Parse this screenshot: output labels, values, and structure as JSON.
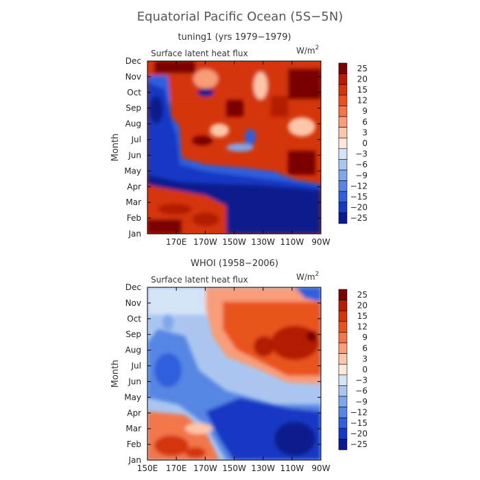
{
  "title": "Equatorial Pacific Ocean (5S−5N)",
  "chart_data": [
    {
      "type": "heatmap",
      "subtitle": "tuning1 (yrs 1979−1979)",
      "field_label": "Surface latent heat flux",
      "units_base": "W/m",
      "units_sup": "2",
      "ylabel": "Month",
      "y_ticks": [
        "Jan",
        "Feb",
        "Mar",
        "Apr",
        "May",
        "Jun",
        "Jul",
        "Aug",
        "Sep",
        "Oct",
        "Nov",
        "Dec"
      ],
      "x_ticks": [
        "170E",
        "170W",
        "150W",
        "130W",
        "110W",
        "90W"
      ],
      "x_range": [
        "150E",
        "90W"
      ],
      "colorbar_levels": [
        "25",
        "20",
        "15",
        "12",
        "9",
        "6",
        "3",
        "0",
        "−3",
        "−6",
        "−9",
        "−12",
        "−15",
        "−20",
        "−25"
      ],
      "colorbar_colors": [
        "#7a0403",
        "#b31e05",
        "#d4350b",
        "#e9521e",
        "#f2764a",
        "#f89d78",
        "#fcc6aa",
        "#fde9da",
        "#d5e3f7",
        "#aac6f0",
        "#7fa7ea",
        "#5686e4",
        "#2f5fdc",
        "#1439c4",
        "#0a1c8c"
      ],
      "grid": false
    },
    {
      "type": "heatmap",
      "subtitle": "WHOI (1958−2006)",
      "field_label": "Surface latent heat flux",
      "units_base": "W/m",
      "units_sup": "2",
      "ylabel": "Month",
      "y_ticks": [
        "Jan",
        "Feb",
        "Mar",
        "Apr",
        "May",
        "Jun",
        "Jul",
        "Aug",
        "Sep",
        "Oct",
        "Nov",
        "Dec"
      ],
      "x_ticks": [
        "150E",
        "170E",
        "170W",
        "150W",
        "130W",
        "110W",
        "90W"
      ],
      "x_range": [
        "150E",
        "90W"
      ],
      "colorbar_levels": [
        "25",
        "20",
        "15",
        "12",
        "9",
        "6",
        "3",
        "0",
        "−3",
        "−6",
        "−9",
        "−12",
        "−15",
        "−20",
        "−25"
      ],
      "colorbar_colors": [
        "#7a0403",
        "#b31e05",
        "#d4350b",
        "#e9521e",
        "#f2764a",
        "#f89d78",
        "#fcc6aa",
        "#fde9da",
        "#d5e3f7",
        "#aac6f0",
        "#7fa7ea",
        "#5686e4",
        "#2f5fdc",
        "#1439c4",
        "#0a1c8c"
      ],
      "grid": false
    }
  ]
}
